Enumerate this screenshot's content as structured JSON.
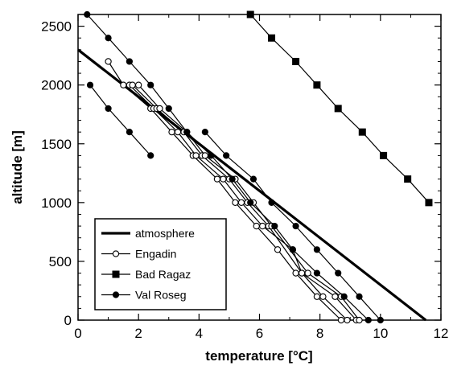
{
  "chart_data": {
    "type": "line",
    "xlabel": "temperature  [°C]",
    "ylabel": "altitude  [m]",
    "xlim": [
      0,
      12
    ],
    "ylim": [
      0,
      2600
    ],
    "xticks": [
      "0",
      "2",
      "4",
      "6",
      "8",
      "10",
      "12"
    ],
    "yticks": [
      "0",
      "500",
      "1000",
      "1500",
      "2000",
      "2500"
    ],
    "grid": false,
    "legend_position": "bottom-left",
    "series": [
      {
        "name": "atmosphere",
        "marker": "none",
        "line_width": "thick",
        "lines": [
          [
            [
              0,
              2300
            ],
            [
              11.5,
              0
            ]
          ]
        ]
      },
      {
        "name": "Engadin",
        "marker": "open-circle",
        "line_width": "thin",
        "lines": [
          [
            [
              1.0,
              2200
            ],
            [
              1.5,
              2000
            ],
            [
              2.4,
              1800
            ],
            [
              3.1,
              1600
            ],
            [
              3.8,
              1400
            ],
            [
              4.6,
              1200
            ],
            [
              5.2,
              1000
            ],
            [
              5.9,
              800
            ],
            [
              6.6,
              600
            ],
            [
              7.2,
              400
            ],
            [
              7.9,
              200
            ],
            [
              8.7,
              0
            ]
          ],
          [
            [
              1.7,
              2000
            ],
            [
              2.5,
              1800
            ],
            [
              3.3,
              1600
            ],
            [
              3.9,
              1400
            ],
            [
              4.8,
              1200
            ],
            [
              5.4,
              1000
            ],
            [
              6.1,
              800
            ],
            [
              7.1,
              600
            ],
            [
              7.4,
              400
            ],
            [
              8.1,
              200
            ],
            [
              8.9,
              0
            ]
          ],
          [
            [
              1.8,
              2000
            ],
            [
              2.6,
              1800
            ],
            [
              3.5,
              1600
            ],
            [
              4.1,
              1400
            ],
            [
              5.0,
              1200
            ],
            [
              5.6,
              1000
            ],
            [
              6.3,
              800
            ],
            [
              7.4,
              400
            ],
            [
              8.5,
              200
            ],
            [
              9.2,
              0
            ]
          ],
          [
            [
              2.0,
              2000
            ],
            [
              2.7,
              1800
            ],
            [
              3.6,
              1600
            ],
            [
              4.2,
              1400
            ],
            [
              5.2,
              1200
            ],
            [
              5.8,
              1000
            ],
            [
              6.4,
              800
            ],
            [
              7.6,
              400
            ],
            [
              8.7,
              200
            ],
            [
              9.3,
              0
            ]
          ]
        ]
      },
      {
        "name": "Bad Ragaz",
        "marker": "filled-square",
        "line_width": "thin",
        "lines": [
          [
            [
              5.7,
              2600
            ],
            [
              6.4,
              2400
            ],
            [
              7.2,
              2200
            ],
            [
              7.9,
              2000
            ],
            [
              8.6,
              1800
            ],
            [
              9.4,
              1600
            ],
            [
              10.1,
              1400
            ],
            [
              10.9,
              1200
            ],
            [
              11.6,
              1000
            ]
          ]
        ]
      },
      {
        "name": "Val Roseg",
        "marker": "filled-circle",
        "line_width": "thin",
        "lines": [
          [
            [
              0.3,
              2600
            ],
            [
              1.0,
              2400
            ],
            [
              1.7,
              2200
            ],
            [
              2.4,
              2000
            ],
            [
              3.0,
              1800
            ],
            [
              3.6,
              1600
            ],
            [
              4.4,
              1400
            ],
            [
              5.1,
              1200
            ],
            [
              5.7,
              1000
            ],
            [
              6.5,
              800
            ],
            [
              7.1,
              600
            ],
            [
              7.9,
              400
            ],
            [
              8.8,
              200
            ],
            [
              9.6,
              0
            ]
          ],
          [
            [
              0.4,
              2000
            ],
            [
              1.0,
              1800
            ],
            [
              1.7,
              1600
            ],
            [
              2.4,
              1400
            ]
          ],
          [
            [
              4.2,
              1600
            ],
            [
              4.9,
              1400
            ],
            [
              5.8,
              1200
            ],
            [
              6.4,
              1000
            ],
            [
              7.2,
              800
            ],
            [
              7.9,
              600
            ],
            [
              8.6,
              400
            ],
            [
              9.3,
              200
            ],
            [
              10.0,
              0
            ]
          ]
        ]
      }
    ]
  }
}
